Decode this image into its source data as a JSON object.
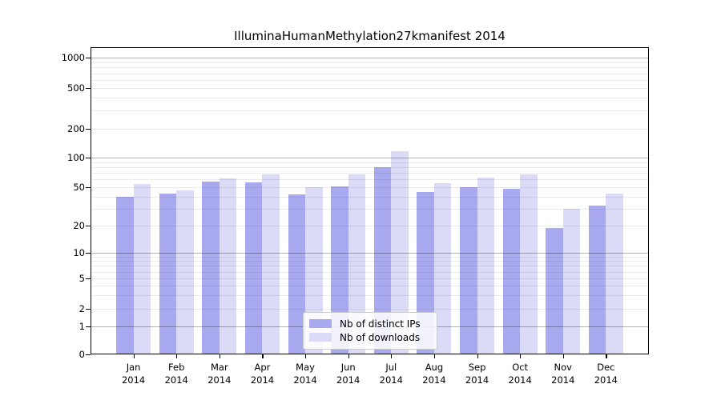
{
  "chart_data": {
    "type": "bar",
    "title": "IlluminaHumanMethylation27kmanifest 2014",
    "categories": [
      "Jan 2014",
      "Feb 2014",
      "Mar 2014",
      "Apr 2014",
      "May 2014",
      "Jun 2014",
      "Jul 2014",
      "Aug 2014",
      "Sep 2014",
      "Oct 2014",
      "Nov 2014",
      "Dec 2014"
    ],
    "series": [
      {
        "name": "Nb of distinct IPs",
        "color": "#a9a9f0",
        "values": [
          40,
          43,
          57,
          56,
          42,
          51,
          80,
          45,
          50,
          48,
          19,
          32
        ]
      },
      {
        "name": "Nb of downloads",
        "color": "#dbdbf8",
        "values": [
          54,
          46,
          62,
          68,
          50,
          68,
          116,
          55,
          63,
          67,
          30,
          43
        ]
      }
    ],
    "yticks": [
      0,
      1,
      2,
      5,
      10,
      20,
      50,
      100,
      200,
      500,
      1000
    ],
    "ylim": [
      0,
      1270
    ],
    "xlabel": "",
    "ylabel": "",
    "yscale": "log-like (symlog: linear 0-1, log above)",
    "grid": "horizontal major at powers of 10, minor at 2-9 per decade, drawn over bars",
    "legend_position": "bottom center inside plot"
  },
  "colors": {
    "bar_dark": "#a9a9f0",
    "bar_light": "#dbdbf8",
    "grid_major": "#b3b3b3",
    "grid_minor": "#e8e8e8",
    "axis": "#000000",
    "legend_border": "#cccccc",
    "background": "#ffffff"
  }
}
